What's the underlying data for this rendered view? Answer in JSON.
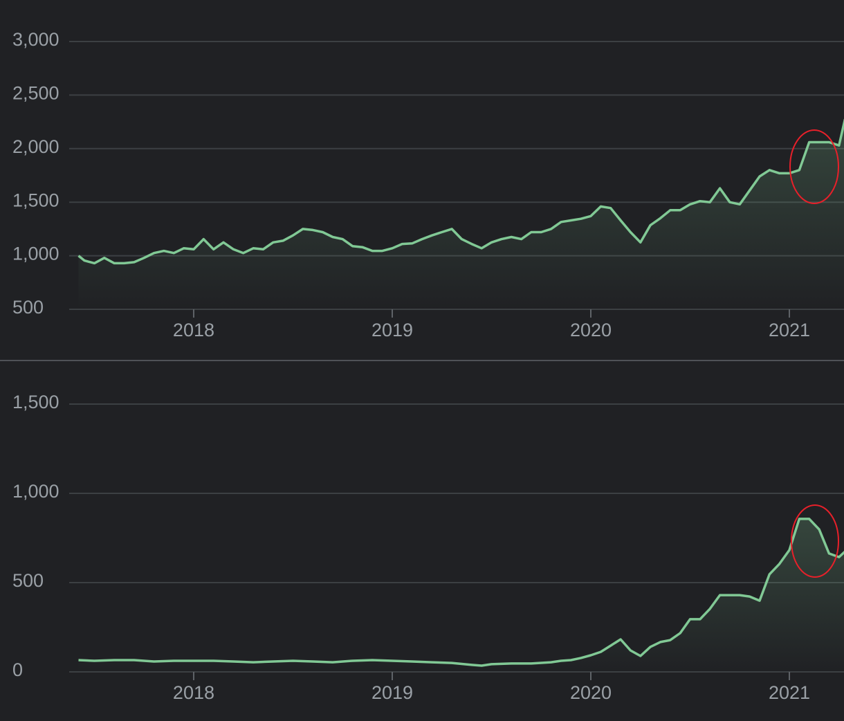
{
  "chart_data": [
    {
      "type": "line",
      "x": [
        2017.42,
        2017.45,
        2017.5,
        2017.55,
        2017.6,
        2017.65,
        2017.7,
        2017.75,
        2017.8,
        2017.85,
        2017.9,
        2017.95,
        2018.0,
        2018.05,
        2018.1,
        2018.15,
        2018.2,
        2018.25,
        2018.3,
        2018.35,
        2018.4,
        2018.45,
        2018.5,
        2018.55,
        2018.6,
        2018.65,
        2018.7,
        2018.75,
        2018.8,
        2018.85,
        2018.9,
        2018.95,
        2019.0,
        2019.05,
        2019.1,
        2019.15,
        2019.2,
        2019.25,
        2019.3,
        2019.35,
        2019.4,
        2019.45,
        2019.5,
        2019.55,
        2019.6,
        2019.65,
        2019.7,
        2019.75,
        2019.8,
        2019.85,
        2019.9,
        2019.95,
        2020.0,
        2020.05,
        2020.1,
        2020.15,
        2020.2,
        2020.25,
        2020.3,
        2020.35,
        2020.4,
        2020.45,
        2020.5,
        2020.55,
        2020.6,
        2020.65,
        2020.7,
        2020.75,
        2020.8,
        2020.85,
        2020.9,
        2020.95,
        2021.0,
        2021.05,
        2021.1,
        2021.15,
        2021.2,
        2021.25,
        2021.28
      ],
      "values": [
        1000,
        955,
        930,
        980,
        930,
        930,
        940,
        980,
        1025,
        1045,
        1025,
        1070,
        1060,
        1155,
        1060,
        1125,
        1060,
        1025,
        1070,
        1060,
        1125,
        1140,
        1190,
        1250,
        1240,
        1220,
        1175,
        1155,
        1090,
        1080,
        1045,
        1045,
        1070,
        1110,
        1115,
        1155,
        1190,
        1220,
        1250,
        1155,
        1110,
        1070,
        1125,
        1155,
        1175,
        1155,
        1220,
        1220,
        1250,
        1315,
        1330,
        1345,
        1370,
        1460,
        1445,
        1330,
        1220,
        1125,
        1285,
        1350,
        1425,
        1425,
        1480,
        1510,
        1500,
        1630,
        1500,
        1480,
        1610,
        1740,
        1800,
        1770,
        1770,
        1800,
        2060,
        2060,
        2060,
        2030,
        2275
      ],
      "color": "#81c995",
      "xlim": [
        2017.42,
        2021.28
      ],
      "xticks": [
        2018,
        2019,
        2020,
        2021
      ],
      "ylim": [
        500,
        3000
      ],
      "yticks": [
        {
          "value": 500,
          "label": "500"
        },
        {
          "value": 1000,
          "label": "1,000"
        },
        {
          "value": 1500,
          "label": "1,500"
        },
        {
          "value": 2000,
          "label": "2,000"
        },
        {
          "value": 2500,
          "label": "2,500"
        },
        {
          "value": 3000,
          "label": "3,000"
        }
      ],
      "grid": true
    },
    {
      "type": "line",
      "x": [
        2017.42,
        2017.5,
        2017.6,
        2017.7,
        2017.8,
        2017.9,
        2018.0,
        2018.1,
        2018.2,
        2018.3,
        2018.4,
        2018.5,
        2018.6,
        2018.7,
        2018.8,
        2018.9,
        2019.0,
        2019.1,
        2019.2,
        2019.3,
        2019.4,
        2019.45,
        2019.5,
        2019.6,
        2019.7,
        2019.8,
        2019.85,
        2019.9,
        2019.95,
        2020.0,
        2020.05,
        2020.1,
        2020.15,
        2020.2,
        2020.25,
        2020.3,
        2020.35,
        2020.4,
        2020.45,
        2020.5,
        2020.55,
        2020.6,
        2020.65,
        2020.7,
        2020.75,
        2020.8,
        2020.85,
        2020.9,
        2020.95,
        2021.0,
        2021.05,
        2021.1,
        2021.15,
        2021.2,
        2021.25,
        2021.28
      ],
      "values": [
        66,
        62,
        66,
        66,
        58,
        62,
        62,
        62,
        58,
        54,
        58,
        62,
        58,
        54,
        62,
        66,
        62,
        58,
        54,
        50,
        39,
        35,
        43,
        47,
        47,
        54,
        62,
        66,
        78,
        93,
        112,
        147,
        182,
        120,
        89,
        140,
        167,
        178,
        217,
        295,
        295,
        353,
        430,
        430,
        430,
        422,
        399,
        547,
        605,
        682,
        857,
        857,
        798,
        663,
        643,
        674
      ],
      "color": "#81c995",
      "xlim": [
        2017.42,
        2021.28
      ],
      "xticks": [
        2018,
        2019,
        2020,
        2021
      ],
      "ylim": [
        0,
        1500
      ],
      "yticks": [
        0,
        500,
        {
          "value": 1000,
          "label": "1,000"
        },
        {
          "value": 1500,
          "label": "1,500"
        }
      ],
      "grid": true
    }
  ]
}
